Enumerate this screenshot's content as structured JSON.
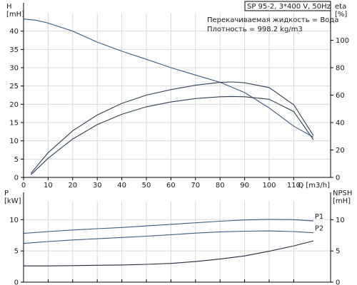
{
  "chart_data": [
    {
      "type": "line",
      "title": "SP 95-2, 3*400 V, 50Hz",
      "annotations": [
        "Перекачиваемая жидкость = Вода",
        "Плотность = 998.2 kg/m3"
      ],
      "xlabel": "Q [m3/h]",
      "ylabel": "H\n[mH]",
      "y2label": "eta\n[%]",
      "xlim": [
        0,
        125
      ],
      "ylim": [
        0,
        45
      ],
      "y2lim": [
        0,
        120
      ],
      "x_ticks": [
        0,
        10,
        20,
        30,
        40,
        50,
        60,
        70,
        80,
        90,
        100,
        110
      ],
      "y_ticks": [
        0,
        5,
        10,
        15,
        20,
        25,
        30,
        35,
        40
      ],
      "y2_ticks": [
        0,
        20,
        40,
        60,
        80,
        100
      ],
      "grid": true,
      "series": [
        {
          "axis": "left",
          "color": "#3c5a80",
          "x": [
            0,
            5,
            10,
            20,
            30,
            40,
            50,
            60,
            70,
            80,
            90,
            100,
            110,
            118
          ],
          "y": [
            43.3,
            43,
            42.2,
            40,
            37,
            34.5,
            32.3,
            30,
            28,
            26,
            23.2,
            19,
            14,
            11
          ]
        },
        {
          "axis": "right",
          "color": "#2f3f55",
          "x": [
            3,
            10,
            20,
            30,
            40,
            50,
            60,
            70,
            80,
            85,
            90,
            100,
            110,
            118
          ],
          "y": [
            2,
            14,
            28,
            38.5,
            46,
            51.5,
            55,
            57.5,
            58.8,
            59,
            58.8,
            57,
            48,
            27.5
          ]
        },
        {
          "axis": "right",
          "color": "#2f3f55",
          "x": [
            3,
            10,
            20,
            30,
            40,
            50,
            60,
            70,
            80,
            85,
            90,
            100,
            110,
            118
          ],
          "y": [
            3,
            18,
            34,
            45.5,
            54,
            60,
            64,
            67.2,
            69.3,
            69.6,
            69,
            65.5,
            53,
            30.5
          ]
        }
      ]
    },
    {
      "type": "line",
      "ylabel": "P\n[kW]",
      "y2label": "NPSH\n[mH]",
      "xlim": [
        0,
        125
      ],
      "ylim": [
        0,
        13
      ],
      "y2lim": [
        0,
        13
      ],
      "y_ticks": [
        0,
        5,
        10
      ],
      "y2_ticks": [
        0,
        5,
        10
      ],
      "grid": true,
      "series": [
        {
          "name": "P1",
          "axis": "left",
          "color": "#3c5a80",
          "x": [
            0,
            10,
            20,
            30,
            40,
            50,
            60,
            70,
            80,
            90,
            100,
            110,
            118
          ],
          "y": [
            7.8,
            8.1,
            8.35,
            8.55,
            8.75,
            9.0,
            9.25,
            9.5,
            9.75,
            9.95,
            10.05,
            10.0,
            9.8
          ]
        },
        {
          "name": "P2",
          "axis": "left",
          "color": "#3c5a80",
          "x": [
            0,
            10,
            20,
            30,
            40,
            50,
            60,
            70,
            80,
            90,
            100,
            110,
            118
          ],
          "y": [
            6.2,
            6.5,
            6.75,
            6.95,
            7.15,
            7.35,
            7.6,
            7.85,
            8.05,
            8.15,
            8.2,
            8.1,
            7.9
          ]
        },
        {
          "axis": "right",
          "color": "#1f2a3a",
          "x": [
            0,
            10,
            20,
            30,
            40,
            50,
            60,
            70,
            80,
            90,
            100,
            110,
            118
          ],
          "y": [
            2.6,
            2.6,
            2.65,
            2.7,
            2.75,
            2.85,
            3.0,
            3.3,
            3.7,
            4.2,
            4.95,
            5.8,
            6.6
          ]
        }
      ]
    }
  ]
}
